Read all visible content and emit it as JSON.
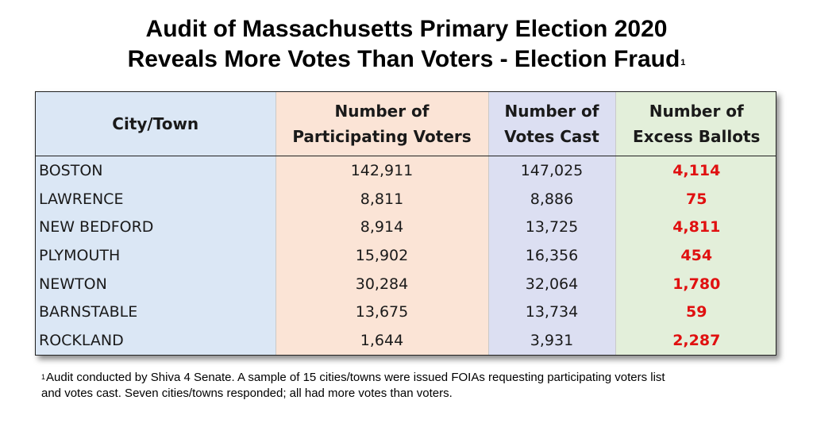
{
  "title": {
    "line1": "Audit of Massachusetts Primary Election 2020",
    "line2": "Reveals More Votes Than Voters - Election Fraud",
    "footnote_marker": "1"
  },
  "table": {
    "headers": {
      "city": "City/Town",
      "participating_line1": "Number of",
      "participating_line2": "Participating Voters",
      "votes_line1": "Number of",
      "votes_line2": "Votes Cast",
      "excess_line1": "Number of",
      "excess_line2": "Excess Ballots"
    },
    "rows": [
      {
        "city": "BOSTON",
        "participating": "142,911",
        "votes": "147,025",
        "excess": "4,114"
      },
      {
        "city": "LAWRENCE",
        "participating": "8,811",
        "votes": "8,886",
        "excess": "75"
      },
      {
        "city": "NEW BEDFORD",
        "participating": "8,914",
        "votes": "13,725",
        "excess": "4,811"
      },
      {
        "city": "PLYMOUTH",
        "participating": "15,902",
        "votes": "16,356",
        "excess": "454"
      },
      {
        "city": "NEWTON",
        "participating": "30,284",
        "votes": "32,064",
        "excess": "1,780"
      },
      {
        "city": "BARNSTABLE",
        "participating": "13,675",
        "votes": "13,734",
        "excess": "59"
      },
      {
        "city": "ROCKLAND",
        "participating": "1,644",
        "votes": "3,931",
        "excess": "2,287"
      }
    ],
    "colors": {
      "city_bg": "#dbe7f5",
      "participating_bg": "#fbe4d6",
      "votes_bg": "#dcdff2",
      "excess_bg": "#e3efda",
      "excess_text": "#e01010"
    }
  },
  "footnote": {
    "marker": "1",
    "line1": "Audit conducted by Shiva 4 Senate. A sample of 15 cities/towns were issued FOIAs requesting participating voters list",
    "line2": "and votes cast. Seven cities/towns responded; all had more votes than voters."
  }
}
